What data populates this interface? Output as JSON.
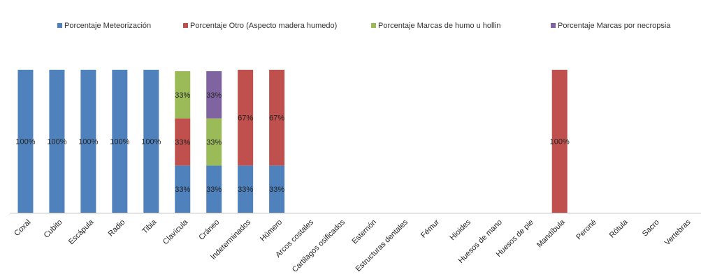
{
  "chart_data": {
    "type": "bar",
    "stacked": true,
    "percent": true,
    "title": "",
    "xlabel": "",
    "ylabel": "",
    "ylim": [
      0,
      100
    ],
    "grid": false,
    "legend_position": "top",
    "categories": [
      "Coxal",
      "Cubito",
      "Escápula",
      "Radio",
      "Tibia",
      "Clavícula",
      "Cráneo",
      "Indeterminados",
      "Húmero",
      "Arcos costales",
      "Cartilagos osificados",
      "Esternón",
      "Estructuras dentales",
      "Fémur",
      "Hioides",
      "Huesos de mano",
      "Huesos de pie",
      "Mandíbula",
      "Peroné",
      "Rótula",
      "Sacro",
      "Vertebras"
    ],
    "series": [
      {
        "name": "Porcentaje Meteorización",
        "color": "#4f81bd",
        "values": [
          100,
          100,
          100,
          100,
          100,
          33,
          33,
          33,
          33,
          0,
          0,
          0,
          0,
          0,
          0,
          0,
          0,
          0,
          0,
          0,
          0,
          0
        ]
      },
      {
        "name": "Porcentaje Otro (Aspecto madera humedo)",
        "color": "#c0504d",
        "values": [
          0,
          0,
          0,
          0,
          0,
          33,
          0,
          67,
          67,
          0,
          0,
          0,
          0,
          0,
          0,
          0,
          0,
          100,
          0,
          0,
          0,
          0
        ]
      },
      {
        "name": "Porcentaje Marcas de humo u hollin",
        "color": "#9bbb59",
        "values": [
          0,
          0,
          0,
          0,
          0,
          33,
          33,
          0,
          0,
          0,
          0,
          0,
          0,
          0,
          0,
          0,
          0,
          0,
          0,
          0,
          0,
          0
        ]
      },
      {
        "name": "Porcentaje Marcas por necropsia",
        "color": "#8064a2",
        "values": [
          0,
          0,
          0,
          0,
          0,
          0,
          33,
          0,
          0,
          0,
          0,
          0,
          0,
          0,
          0,
          0,
          0,
          0,
          0,
          0,
          0,
          0
        ]
      }
    ]
  }
}
